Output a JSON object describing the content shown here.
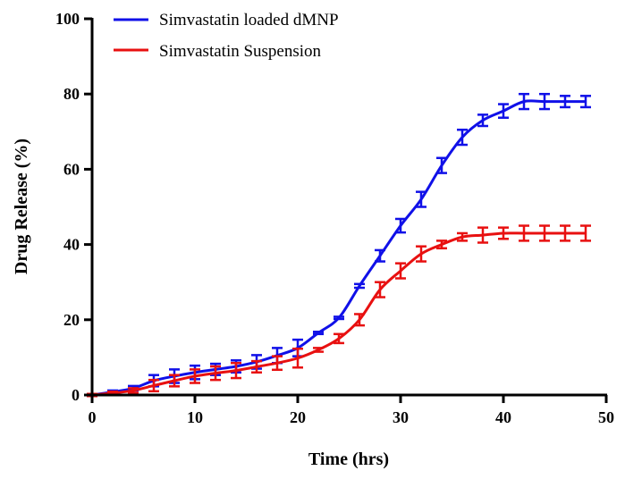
{
  "chart_data": {
    "type": "line",
    "title": "",
    "xlabel": "Time (hrs)",
    "ylabel": "Drug Release (%)",
    "xlim": [
      0,
      50
    ],
    "ylim": [
      0,
      100
    ],
    "xticks": [
      "0",
      "10",
      "20",
      "30",
      "40",
      "50"
    ],
    "yticks": [
      "0",
      "20",
      "40",
      "60",
      "80",
      "100"
    ],
    "grid": false,
    "legend_position": "top-left",
    "series": [
      {
        "name": "Simvastatin loaded dMNP",
        "color": "#1010e8",
        "x": [
          0,
          2,
          4,
          6,
          8,
          10,
          12,
          14,
          16,
          18,
          20,
          22,
          24,
          26,
          28,
          30,
          32,
          34,
          36,
          38,
          40,
          42,
          44,
          46,
          48
        ],
        "y": [
          0,
          0.8,
          1.8,
          3.8,
          5.0,
          6.0,
          6.8,
          7.6,
          8.8,
          10.5,
          12.5,
          16.5,
          20.5,
          29.0,
          37.0,
          45.0,
          52.0,
          61.0,
          68.5,
          73.0,
          75.5,
          78.0,
          78.0,
          78.0,
          78.0
        ],
        "err": [
          0.3,
          0.4,
          0.6,
          1.5,
          1.8,
          1.8,
          1.5,
          1.6,
          1.8,
          2.0,
          2.2,
          0.3,
          0.3,
          0.5,
          1.5,
          1.8,
          2.0,
          2.0,
          2.0,
          1.5,
          1.8,
          2.0,
          2.0,
          1.5,
          1.5
        ]
      },
      {
        "name": "Simvastatin Suspension",
        "color": "#e81010",
        "x": [
          0,
          2,
          4,
          6,
          8,
          10,
          12,
          14,
          16,
          18,
          20,
          22,
          24,
          26,
          28,
          30,
          32,
          34,
          36,
          38,
          40,
          42,
          44,
          46,
          48
        ],
        "y": [
          0,
          0.5,
          1.2,
          2.5,
          3.8,
          5.0,
          5.8,
          6.5,
          7.5,
          8.5,
          9.8,
          12.0,
          15.0,
          20.0,
          28.0,
          33.0,
          37.5,
          40.0,
          42.0,
          42.5,
          43.0,
          43.0,
          43.0,
          43.0,
          43.0
        ],
        "err": [
          0.3,
          0.4,
          0.6,
          1.5,
          1.5,
          1.8,
          1.8,
          2.0,
          1.5,
          1.8,
          2.5,
          0.5,
          1.2,
          1.5,
          2.0,
          2.0,
          2.0,
          1.0,
          1.0,
          2.0,
          1.5,
          2.0,
          2.0,
          2.0,
          2.0
        ]
      }
    ]
  }
}
